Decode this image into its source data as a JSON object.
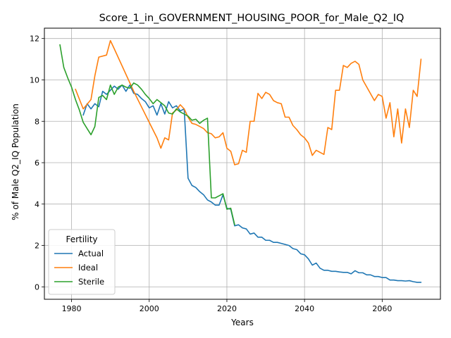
{
  "chart_data": {
    "type": "line",
    "title": "Score_1_in_GOVERNMENT_HOUSING_POOR_for_Male_Q2_IQ",
    "xlabel": "Years",
    "ylabel": "% of Male Q2_IQ Population",
    "xlim": [
      1973,
      2075
    ],
    "ylim": [
      -0.6,
      12.5
    ],
    "xticks": [
      1980,
      2000,
      2020,
      2040,
      2060
    ],
    "yticks": [
      0,
      2,
      4,
      6,
      8,
      10,
      12
    ],
    "grid": true,
    "legend": {
      "title": "Fertility",
      "placement": "lower-left"
    },
    "series": [
      {
        "name": "Actual",
        "color": "#1f77b4",
        "points": [
          [
            1983,
            8.3
          ],
          [
            1984,
            8.85
          ],
          [
            1985,
            8.6
          ],
          [
            1986,
            8.85
          ],
          [
            1987,
            8.7
          ],
          [
            1988,
            9.45
          ],
          [
            1989,
            9.3
          ],
          [
            1990,
            9.5
          ],
          [
            1991,
            9.7
          ],
          [
            1992,
            9.55
          ],
          [
            1993,
            9.75
          ],
          [
            1994,
            9.45
          ],
          [
            1995,
            9.75
          ],
          [
            1996,
            9.35
          ],
          [
            1997,
            9.3
          ],
          [
            1998,
            9.1
          ],
          [
            1999,
            8.95
          ],
          [
            2000,
            8.65
          ],
          [
            2001,
            8.75
          ],
          [
            2002,
            8.3
          ],
          [
            2003,
            8.85
          ],
          [
            2004,
            8.35
          ],
          [
            2005,
            8.95
          ],
          [
            2006,
            8.65
          ],
          [
            2007,
            8.75
          ],
          [
            2008,
            8.5
          ],
          [
            2009,
            8.6
          ],
          [
            2010,
            5.25
          ],
          [
            2011,
            4.9
          ],
          [
            2012,
            4.8
          ],
          [
            2013,
            4.6
          ],
          [
            2014,
            4.45
          ],
          [
            2015,
            4.2
          ],
          [
            2016,
            4.1
          ],
          [
            2017,
            3.95
          ],
          [
            2018,
            3.95
          ],
          [
            2019,
            4.45
          ],
          [
            2020,
            3.8
          ],
          [
            2021,
            3.75
          ],
          [
            2022,
            2.95
          ],
          [
            2023,
            3.0
          ],
          [
            2024,
            2.85
          ],
          [
            2025,
            2.8
          ],
          [
            2026,
            2.55
          ],
          [
            2027,
            2.6
          ],
          [
            2028,
            2.4
          ],
          [
            2029,
            2.4
          ],
          [
            2030,
            2.25
          ],
          [
            2031,
            2.25
          ],
          [
            2032,
            2.15
          ],
          [
            2033,
            2.15
          ],
          [
            2034,
            2.1
          ],
          [
            2035,
            2.05
          ],
          [
            2036,
            2.0
          ],
          [
            2037,
            1.85
          ],
          [
            2038,
            1.8
          ],
          [
            2039,
            1.6
          ],
          [
            2040,
            1.55
          ],
          [
            2041,
            1.35
          ],
          [
            2042,
            1.05
          ],
          [
            2043,
            1.15
          ],
          [
            2044,
            0.9
          ],
          [
            2045,
            0.8
          ],
          [
            2046,
            0.8
          ],
          [
            2047,
            0.75
          ],
          [
            2048,
            0.75
          ],
          [
            2049,
            0.72
          ],
          [
            2050,
            0.7
          ],
          [
            2051,
            0.7
          ],
          [
            2052,
            0.63
          ],
          [
            2053,
            0.78
          ],
          [
            2054,
            0.68
          ],
          [
            2055,
            0.68
          ],
          [
            2056,
            0.58
          ],
          [
            2057,
            0.58
          ],
          [
            2058,
            0.5
          ],
          [
            2059,
            0.5
          ],
          [
            2060,
            0.45
          ],
          [
            2061,
            0.45
          ],
          [
            2062,
            0.33
          ],
          [
            2063,
            0.33
          ],
          [
            2064,
            0.3
          ],
          [
            2065,
            0.3
          ],
          [
            2066,
            0.28
          ],
          [
            2067,
            0.3
          ],
          [
            2068,
            0.25
          ],
          [
            2069,
            0.22
          ],
          [
            2070,
            0.22
          ]
        ]
      },
      {
        "name": "Ideal",
        "color": "#ff7f0e",
        "points": [
          [
            1981,
            9.55
          ],
          [
            1983,
            8.6
          ],
          [
            1985,
            9.05
          ],
          [
            1986,
            10.2
          ],
          [
            1987,
            11.1
          ],
          [
            1989,
            11.2
          ],
          [
            1990,
            11.9
          ],
          [
            1991,
            11.5
          ],
          [
            1996,
            9.45
          ],
          [
            1998,
            8.7
          ],
          [
            2000,
            7.95
          ],
          [
            2002,
            7.2
          ],
          [
            2003,
            6.7
          ],
          [
            2004,
            7.2
          ],
          [
            2005,
            7.1
          ],
          [
            2006,
            8.4
          ],
          [
            2007,
            8.55
          ],
          [
            2008,
            8.8
          ],
          [
            2009,
            8.6
          ],
          [
            2010,
            8.2
          ],
          [
            2011,
            7.9
          ],
          [
            2012,
            7.85
          ],
          [
            2013,
            7.75
          ],
          [
            2014,
            7.65
          ],
          [
            2015,
            7.45
          ],
          [
            2016,
            7.4
          ],
          [
            2017,
            7.2
          ],
          [
            2018,
            7.25
          ],
          [
            2019,
            7.45
          ],
          [
            2020,
            6.7
          ],
          [
            2021,
            6.55
          ],
          [
            2022,
            5.9
          ],
          [
            2023,
            5.95
          ],
          [
            2024,
            6.6
          ],
          [
            2025,
            6.5
          ],
          [
            2026,
            8.0
          ],
          [
            2027,
            8.0
          ],
          [
            2028,
            9.35
          ],
          [
            2029,
            9.1
          ],
          [
            2030,
            9.4
          ],
          [
            2031,
            9.3
          ],
          [
            2032,
            9.0
          ],
          [
            2033,
            8.9
          ],
          [
            2034,
            8.85
          ],
          [
            2035,
            8.2
          ],
          [
            2036,
            8.2
          ],
          [
            2037,
            7.8
          ],
          [
            2038,
            7.6
          ],
          [
            2039,
            7.35
          ],
          [
            2040,
            7.2
          ],
          [
            2041,
            6.95
          ],
          [
            2042,
            6.35
          ],
          [
            2043,
            6.6
          ],
          [
            2045,
            6.4
          ],
          [
            2046,
            7.7
          ],
          [
            2047,
            7.6
          ],
          [
            2048,
            9.5
          ],
          [
            2049,
            9.5
          ],
          [
            2050,
            10.7
          ],
          [
            2051,
            10.6
          ],
          [
            2052,
            10.8
          ],
          [
            2053,
            10.9
          ],
          [
            2054,
            10.75
          ],
          [
            2055,
            10.0
          ],
          [
            2058,
            9.0
          ],
          [
            2059,
            9.3
          ],
          [
            2060,
            9.2
          ],
          [
            2061,
            8.15
          ],
          [
            2062,
            8.9
          ],
          [
            2063,
            7.25
          ],
          [
            2064,
            8.6
          ],
          [
            2065,
            6.95
          ],
          [
            2066,
            8.6
          ],
          [
            2067,
            7.7
          ],
          [
            2068,
            9.5
          ],
          [
            2069,
            9.2
          ],
          [
            2070,
            11.0
          ]
        ]
      },
      {
        "name": "Sterile",
        "color": "#2ca02c",
        "points": [
          [
            1977,
            11.7
          ],
          [
            1978,
            10.6
          ],
          [
            1979,
            10.1
          ],
          [
            1980,
            9.65
          ],
          [
            1981,
            9.05
          ],
          [
            1982,
            8.55
          ],
          [
            1983,
            7.95
          ],
          [
            1984,
            7.65
          ],
          [
            1985,
            7.35
          ],
          [
            1986,
            7.75
          ],
          [
            1987,
            9.15
          ],
          [
            1988,
            9.25
          ],
          [
            1989,
            9.05
          ],
          [
            1990,
            9.75
          ],
          [
            1991,
            9.3
          ],
          [
            1992,
            9.65
          ],
          [
            1993,
            9.75
          ],
          [
            1994,
            9.65
          ],
          [
            1995,
            9.6
          ],
          [
            1996,
            9.85
          ],
          [
            1997,
            9.75
          ],
          [
            1998,
            9.55
          ],
          [
            1999,
            9.3
          ],
          [
            2000,
            9.1
          ],
          [
            2001,
            8.85
          ],
          [
            2002,
            9.05
          ],
          [
            2003,
            8.9
          ],
          [
            2004,
            8.75
          ],
          [
            2005,
            8.4
          ],
          [
            2006,
            8.35
          ],
          [
            2007,
            8.6
          ],
          [
            2008,
            8.45
          ],
          [
            2009,
            8.35
          ],
          [
            2010,
            8.25
          ],
          [
            2011,
            8.05
          ],
          [
            2012,
            8.1
          ],
          [
            2013,
            7.9
          ],
          [
            2014,
            8.05
          ],
          [
            2015,
            8.15
          ],
          [
            2016,
            4.3
          ],
          [
            2017,
            4.3
          ],
          [
            2018,
            4.4
          ],
          [
            2019,
            4.5
          ],
          [
            2020,
            3.75
          ],
          [
            2021,
            3.8
          ],
          [
            2022,
            3.0
          ]
        ]
      }
    ]
  }
}
